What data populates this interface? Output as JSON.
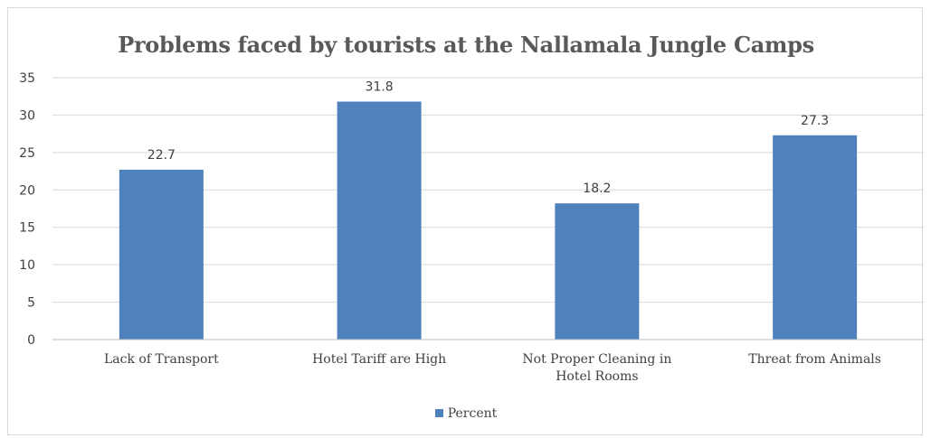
{
  "chart_data": {
    "type": "bar",
    "title": "Problems faced by tourists at the Nallamala Jungle Camps",
    "categories": [
      "Lack of Transport",
      "Hotel Tariff are High",
      "Not Proper Cleaning in Hotel Rooms",
      "Threat from Animals"
    ],
    "series": [
      {
        "name": "Percent",
        "values": [
          22.7,
          31.8,
          18.2,
          27.3
        ],
        "color": "#4f81bd"
      }
    ],
    "data_labels": [
      "22.7",
      "31.8",
      "18.2",
      "27.3"
    ],
    "ylim": [
      0,
      35
    ],
    "yticks": [
      "0",
      "5",
      "10",
      "15",
      "20",
      "25",
      "30",
      "35"
    ],
    "grid": true,
    "legend_position": "bottom",
    "xlabel": "",
    "ylabel": ""
  }
}
